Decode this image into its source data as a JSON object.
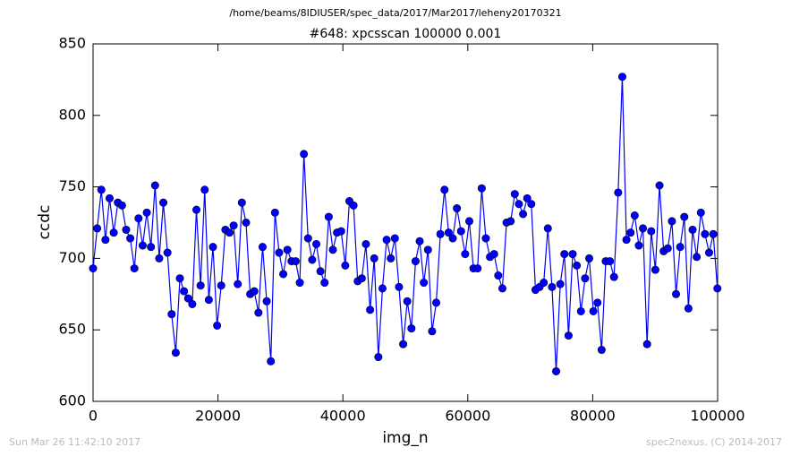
{
  "chart_data": {
    "type": "line",
    "suptitle": "/home/beams/8IDIUSER/spec_data/2017/Mar2017/leheny20170321",
    "title": "#648: xpcsscan 100000 0.001",
    "x_label": "img_n",
    "y_label": "ccdc",
    "footer_left": "Sun Mar 26 11:42:10 2017",
    "footer_right": "spec2nexus, (C) 2014-2017",
    "xlim": [
      0,
      100000
    ],
    "xticks": [
      0,
      20000,
      40000,
      60000,
      80000,
      100000
    ],
    "ylim": [
      600,
      850
    ],
    "yticks": [
      600,
      650,
      700,
      750,
      800,
      850
    ],
    "x": [
      0,
      662,
      1324,
      1986,
      2648,
      3310,
      3972,
      4634,
      5296,
      5958,
      6620,
      7282,
      7944,
      8606,
      9268,
      9930,
      10592,
      11254,
      11916,
      12578,
      13240,
      13902,
      14564,
      15226,
      15888,
      16550,
      17212,
      17874,
      18536,
      19198,
      19860,
      20522,
      21184,
      21846,
      22508,
      23170,
      23832,
      24494,
      25156,
      25818,
      26480,
      27142,
      27804,
      28466,
      29128,
      29790,
      30452,
      31114,
      31776,
      32438,
      33100,
      33762,
      34424,
      35086,
      35748,
      36410,
      37072,
      37734,
      38396,
      39058,
      39720,
      40382,
      41044,
      41706,
      42368,
      43030,
      43692,
      44354,
      45016,
      45678,
      46340,
      47002,
      47664,
      48326,
      48988,
      49650,
      50312,
      50974,
      51636,
      52298,
      52960,
      53622,
      54284,
      54946,
      55608,
      56270,
      56932,
      57594,
      58256,
      58918,
      59580,
      60242,
      60904,
      61566,
      62228,
      62890,
      63552,
      64214,
      64876,
      65538,
      66200,
      66862,
      67524,
      68186,
      68848,
      69510,
      70172,
      70834,
      71496,
      72158,
      72820,
      73482,
      74144,
      74806,
      75468,
      76130,
      76792,
      77454,
      78116,
      78778,
      79440,
      80102,
      80764,
      81426,
      82088,
      82750,
      83412,
      84074,
      84736,
      85398,
      86060,
      86722,
      87384,
      88046,
      88708,
      89370,
      90032,
      90694,
      91356,
      92018,
      92680,
      93342,
      94004,
      94666,
      95328,
      95990,
      96652,
      97314,
      97976,
      98638,
      99300,
      99962
    ],
    "series": [
      {
        "name": "ccdc",
        "color": "#0000ff",
        "values": [
          693,
          721,
          748,
          713,
          742,
          718,
          739,
          737,
          720,
          714,
          693,
          728,
          709,
          732,
          708,
          751,
          700,
          739,
          704,
          661,
          634,
          686,
          677,
          672,
          668,
          734,
          681,
          748,
          671,
          708,
          653,
          681,
          720,
          718,
          723,
          682,
          739,
          725,
          675,
          677,
          662,
          708,
          670,
          628,
          732,
          704,
          689,
          706,
          698,
          698,
          683,
          773,
          714,
          699,
          710,
          691,
          683,
          729,
          706,
          718,
          719,
          695,
          740,
          737,
          684,
          686,
          710,
          664,
          700,
          631,
          679,
          713,
          700,
          714,
          680,
          640,
          670,
          651,
          698,
          712,
          683,
          706,
          649,
          669,
          717,
          748,
          718,
          714,
          735,
          719,
          703,
          726,
          693,
          693,
          749,
          714,
          701,
          703,
          688,
          679,
          725,
          726,
          745,
          738,
          731,
          742,
          738,
          678,
          680,
          683,
          721,
          680,
          621,
          682,
          703,
          646,
          703,
          695,
          663,
          686,
          700,
          663,
          669,
          636,
          698,
          698,
          687,
          746,
          827,
          713,
          718,
          730,
          709,
          721,
          640,
          719,
          692,
          751,
          705,
          707,
          726,
          675,
          708,
          729,
          665,
          720,
          701,
          732,
          717,
          704,
          717,
          679
        ]
      }
    ]
  }
}
